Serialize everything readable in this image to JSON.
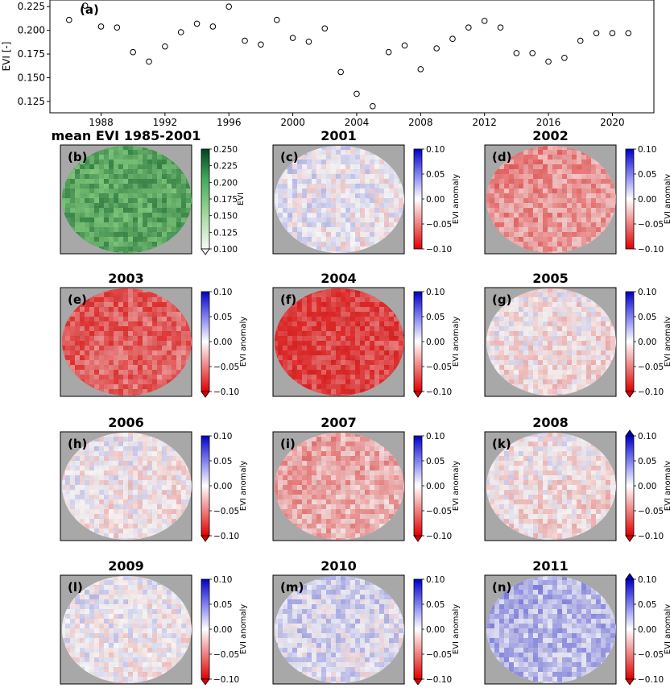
{
  "chart_data": [
    {
      "type": "scatter",
      "panel_label": "(a)",
      "ylabel": "EVI [-]",
      "x": [
        1986,
        1987,
        1988,
        1989,
        1990,
        1991,
        1992,
        1993,
        1994,
        1995,
        1996,
        1997,
        1998,
        1999,
        2000,
        2001,
        2002,
        2003,
        2004,
        2005,
        2006,
        2007,
        2008,
        2009,
        2010,
        2011,
        2012,
        2013,
        2014,
        2015,
        2016,
        2017,
        2018,
        2019,
        2020,
        2021
      ],
      "y": [
        0.211,
        0.226,
        0.204,
        0.203,
        0.177,
        0.167,
        0.183,
        0.198,
        0.207,
        0.204,
        0.225,
        0.189,
        0.185,
        0.211,
        0.192,
        0.188,
        0.202,
        0.156,
        0.133,
        0.12,
        0.177,
        0.184,
        0.159,
        0.181,
        0.191,
        0.203,
        0.21,
        0.203,
        0.176,
        0.176,
        0.167,
        0.171,
        0.189,
        0.197,
        0.197,
        0.197
      ],
      "xticks": [
        1988,
        1992,
        1996,
        2000,
        2004,
        2008,
        2012,
        2016,
        2020
      ],
      "yticks": [
        0.125,
        0.15,
        0.175,
        0.2,
        0.225
      ],
      "xtick_labels": [
        "1988",
        "1992",
        "1996",
        "2000",
        "2004",
        "2008",
        "2012",
        "2016",
        "2020"
      ],
      "ytick_labels": [
        "0.125",
        "0.150",
        "0.175",
        "0.200",
        "0.225"
      ],
      "xlim": [
        1984.8,
        2022.6
      ],
      "ylim": [
        0.113,
        0.232
      ]
    },
    {
      "type": "heatmap",
      "maps": [
        {
          "title": "mean EVI 1985-2001",
          "label": "(b)",
          "colormap": "greens",
          "cbar_label": "EVI",
          "cbar_ticks": [
            "0.250",
            "0.225",
            "0.200",
            "0.175",
            "0.150",
            "0.125",
            "0.100"
          ],
          "extend": "min"
        },
        {
          "title": "2001",
          "label": "(c)",
          "colormap": "anomaly",
          "cbar_label": "EVI anomaly",
          "cbar_ticks": [
            "0.10",
            "0.05",
            "0.00",
            "−0.05",
            "−0.10"
          ],
          "extend": "none",
          "mean_anomaly": 0.003
        },
        {
          "title": "2002",
          "label": "(d)",
          "colormap": "anomaly",
          "cbar_label": "EVI anomaly",
          "cbar_ticks": [
            "0.10",
            "0.05",
            "0.00",
            "−0.05",
            "−0.10"
          ],
          "extend": "none",
          "mean_anomaly": -0.045
        },
        {
          "title": "2003",
          "label": "(e)",
          "colormap": "anomaly",
          "cbar_label": "EVI anomaly",
          "cbar_ticks": [
            "0.10",
            "0.05",
            "0.00",
            "−0.05",
            "−0.10"
          ],
          "extend": "min",
          "mean_anomaly": -0.07
        },
        {
          "title": "2004",
          "label": "(f)",
          "colormap": "anomaly",
          "cbar_label": "EVI anomaly",
          "cbar_ticks": [
            "0.10",
            "0.05",
            "0.00",
            "−0.05",
            "−0.10"
          ],
          "extend": "min",
          "mean_anomaly": -0.085
        },
        {
          "title": "2005",
          "label": "(g)",
          "colormap": "anomaly",
          "cbar_label": "EVI anomaly",
          "cbar_ticks": [
            "0.10",
            "0.05",
            "0.00",
            "−0.05",
            "−0.10"
          ],
          "extend": "min",
          "mean_anomaly": -0.01
        },
        {
          "title": "2006",
          "label": "(h)",
          "colormap": "anomaly",
          "cbar_label": "EVI anomaly",
          "cbar_ticks": [
            "0.10",
            "0.05",
            "0.00",
            "−0.05",
            "−0.10"
          ],
          "extend": "min",
          "mean_anomaly": -0.005
        },
        {
          "title": "2007",
          "label": "(i)",
          "colormap": "anomaly",
          "cbar_label": "EVI anomaly",
          "cbar_ticks": [
            "0.10",
            "0.05",
            "0.00",
            "−0.05",
            "−0.10"
          ],
          "extend": "min",
          "mean_anomaly": -0.035
        },
        {
          "title": "2008",
          "label": "(k)",
          "colormap": "anomaly",
          "cbar_label": "EVI anomaly",
          "cbar_ticks": [
            "0.10",
            "0.05",
            "0.00",
            "−0.05",
            "−0.10"
          ],
          "extend": "both",
          "mean_anomaly": -0.01
        },
        {
          "title": "2009",
          "label": "(l)",
          "colormap": "anomaly",
          "cbar_label": "EVI anomaly",
          "cbar_ticks": [
            "0.10",
            "0.05",
            "0.00",
            "−0.05",
            "−0.10"
          ],
          "extend": "min",
          "mean_anomaly": 0.0
        },
        {
          "title": "2010",
          "label": "(m)",
          "colormap": "anomaly",
          "cbar_label": "EVI anomaly",
          "cbar_ticks": [
            "0.10",
            "0.05",
            "0.00",
            "−0.05",
            "−0.10"
          ],
          "extend": "min",
          "mean_anomaly": 0.012
        },
        {
          "title": "2011",
          "label": "(n)",
          "colormap": "anomaly",
          "cbar_label": "EVI anomaly",
          "cbar_ticks": [
            "0.10",
            "0.05",
            "0.00",
            "−0.05",
            "−0.10"
          ],
          "extend": "both",
          "mean_anomaly": 0.028
        }
      ]
    }
  ]
}
